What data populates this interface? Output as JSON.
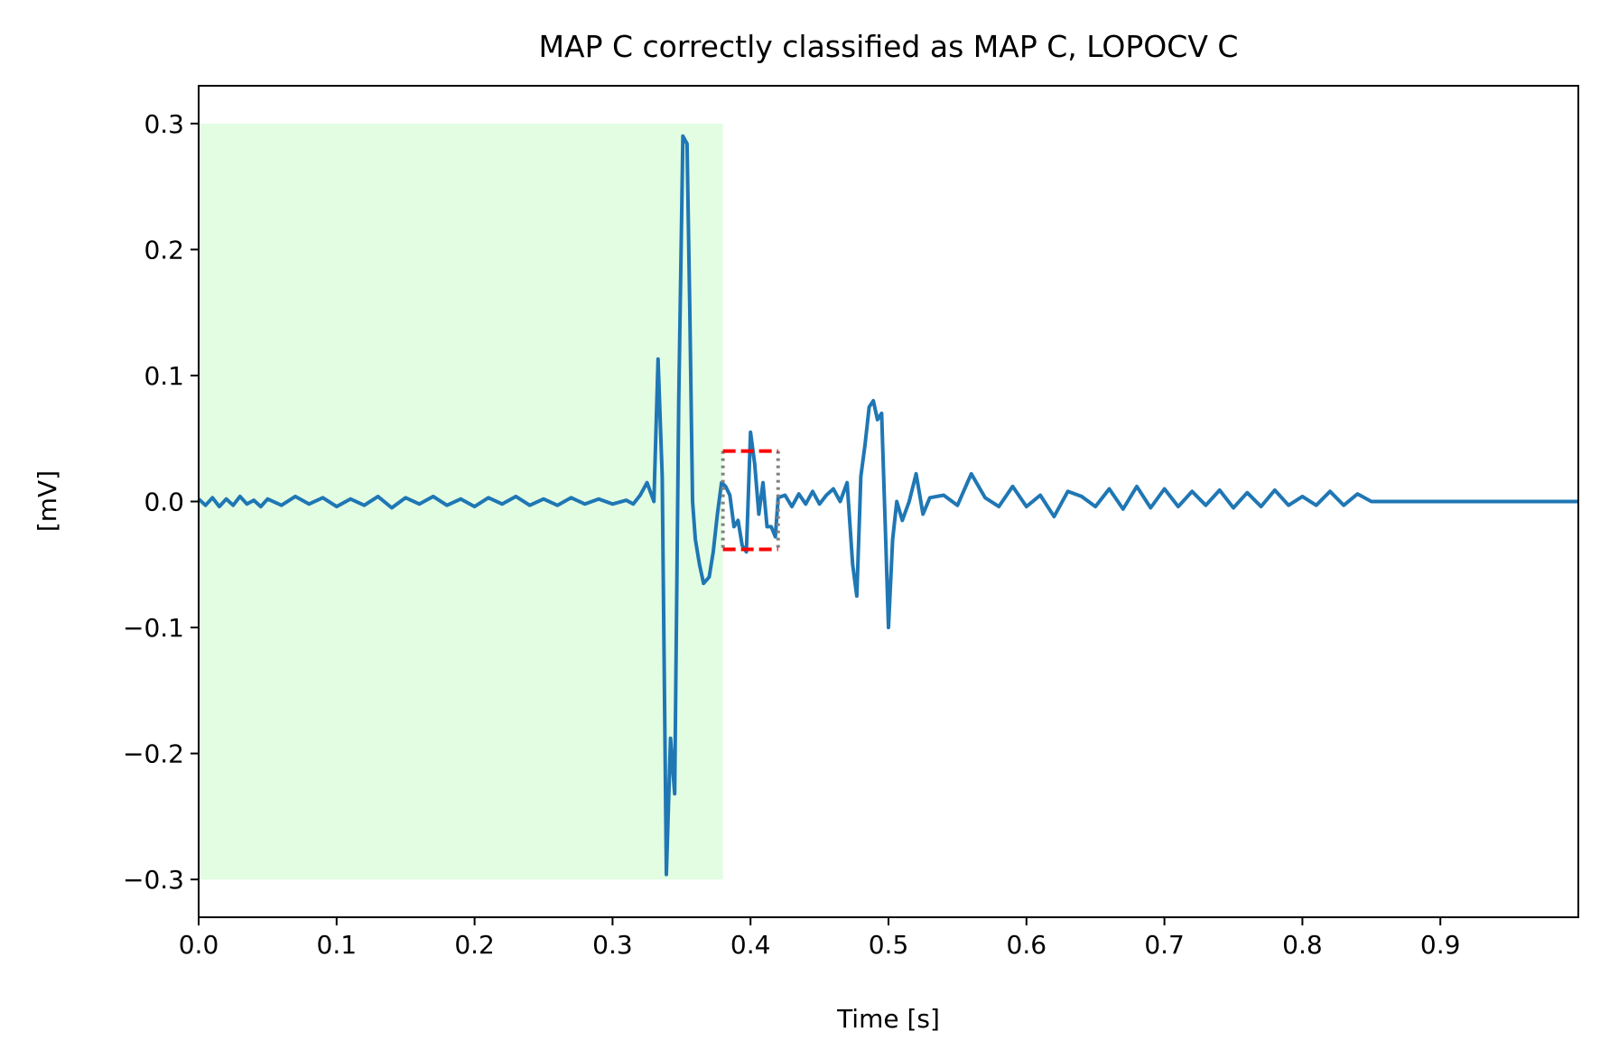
{
  "chart_data": {
    "type": "line",
    "title": "MAP C correctly classified as MAP C, LOPOCV C",
    "xlabel": "Time [s]",
    "ylabel": "[mV]",
    "xlim": [
      0,
      1.0
    ],
    "ylim": [
      -0.33,
      0.33
    ],
    "xticks": [
      "0.0",
      "0.1",
      "0.2",
      "0.3",
      "0.4",
      "0.5",
      "0.6",
      "0.7",
      "0.8",
      "0.9"
    ],
    "yticks": [
      "0.3",
      "0.2",
      "0.1",
      "0.0",
      "−0.1",
      "−0.2",
      "−0.3"
    ],
    "grid": false,
    "colors": {
      "line": "#1f77b4",
      "shade": "#e3fde3",
      "dashed_box": "#ff0000",
      "dotted_box": "#808080"
    },
    "shaded_region": {
      "x": [
        0.0,
        0.38
      ],
      "y": [
        -0.3,
        0.3
      ]
    },
    "highlight_box": {
      "x": [
        0.38,
        0.42
      ],
      "y": [
        -0.038,
        0.04
      ]
    },
    "series": [
      {
        "x": [
          0.0,
          0.005,
          0.01,
          0.015,
          0.02,
          0.025,
          0.03,
          0.035,
          0.04,
          0.045,
          0.05,
          0.06,
          0.07,
          0.08,
          0.09,
          0.1,
          0.11,
          0.12,
          0.13,
          0.14,
          0.15,
          0.16,
          0.17,
          0.18,
          0.19,
          0.2,
          0.21,
          0.22,
          0.23,
          0.24,
          0.25,
          0.26,
          0.27,
          0.28,
          0.29,
          0.3,
          0.31,
          0.315,
          0.32,
          0.325,
          0.33,
          0.333,
          0.336,
          0.339,
          0.342,
          0.345,
          0.348,
          0.351,
          0.354,
          0.356,
          0.358,
          0.36,
          0.363,
          0.366,
          0.37,
          0.373,
          0.376,
          0.379,
          0.382,
          0.385,
          0.388,
          0.391,
          0.394,
          0.397,
          0.4,
          0.403,
          0.406,
          0.409,
          0.412,
          0.415,
          0.418,
          0.42,
          0.425,
          0.43,
          0.435,
          0.44,
          0.445,
          0.45,
          0.455,
          0.46,
          0.465,
          0.47,
          0.474,
          0.477,
          0.48,
          0.483,
          0.486,
          0.489,
          0.492,
          0.495,
          0.498,
          0.5,
          0.503,
          0.506,
          0.51,
          0.515,
          0.52,
          0.525,
          0.53,
          0.54,
          0.55,
          0.56,
          0.57,
          0.58,
          0.59,
          0.6,
          0.61,
          0.62,
          0.63,
          0.64,
          0.65,
          0.66,
          0.67,
          0.68,
          0.69,
          0.7,
          0.71,
          0.72,
          0.73,
          0.74,
          0.75,
          0.76,
          0.77,
          0.78,
          0.79,
          0.8,
          0.81,
          0.82,
          0.83,
          0.84,
          0.85,
          0.86,
          0.9,
          0.95,
          1.0
        ],
        "y": [
          0.002,
          -0.003,
          0.003,
          -0.004,
          0.002,
          -0.003,
          0.004,
          -0.002,
          0.001,
          -0.004,
          0.002,
          -0.003,
          0.004,
          -0.002,
          0.003,
          -0.004,
          0.002,
          -0.003,
          0.004,
          -0.005,
          0.003,
          -0.002,
          0.004,
          -0.003,
          0.002,
          -0.004,
          0.003,
          -0.002,
          0.004,
          -0.003,
          0.002,
          -0.003,
          0.003,
          -0.002,
          0.002,
          -0.002,
          0.001,
          -0.002,
          0.005,
          0.015,
          0.0,
          0.113,
          0.02,
          -0.296,
          -0.188,
          -0.232,
          0.08,
          0.29,
          0.284,
          0.15,
          0.0,
          -0.03,
          -0.05,
          -0.065,
          -0.06,
          -0.04,
          -0.01,
          0.015,
          0.012,
          0.005,
          -0.02,
          -0.015,
          -0.035,
          -0.04,
          0.055,
          0.03,
          -0.01,
          0.015,
          -0.02,
          -0.02,
          -0.028,
          0.003,
          0.005,
          -0.004,
          0.006,
          -0.002,
          0.008,
          -0.002,
          0.005,
          0.01,
          0.0,
          0.015,
          -0.05,
          -0.075,
          0.02,
          0.045,
          0.075,
          0.08,
          0.065,
          0.07,
          -0.03,
          -0.1,
          -0.03,
          0.0,
          -0.015,
          0.0,
          0.022,
          -0.01,
          0.003,
          0.005,
          -0.003,
          0.022,
          0.003,
          -0.004,
          0.012,
          -0.004,
          0.005,
          -0.012,
          0.008,
          0.004,
          -0.004,
          0.01,
          -0.006,
          0.012,
          -0.005,
          0.01,
          -0.004,
          0.008,
          -0.003,
          0.009,
          -0.005,
          0.007,
          -0.004,
          0.009,
          -0.003,
          0.004,
          -0.003,
          0.008,
          -0.003,
          0.006,
          0.0,
          0.0,
          0.0,
          0.0,
          0.0
        ]
      }
    ]
  }
}
